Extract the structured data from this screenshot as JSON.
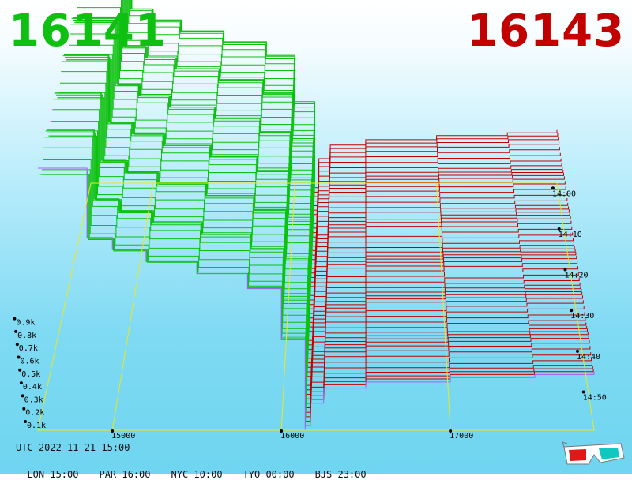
{
  "header": {
    "bid_price": "16141",
    "ask_price": "16143"
  },
  "footer": {
    "utc": "UTC 2022-11-21 15:00",
    "timezones": [
      "LON 15:00",
      "PAR 16:00",
      "NYC 10:00",
      "TYO 00:00",
      "BJS 23:00"
    ]
  },
  "icons": {
    "glasses": "3d-glasses-icon"
  },
  "colors": {
    "bid": "#0ec010",
    "ask": "#c20000",
    "axis": "#e8e820",
    "latest": "#a060ff"
  },
  "chart_data": {
    "type": "area",
    "subtype": "3d-order-book-depth",
    "price_ticks": [
      "15000",
      "16000",
      "17000"
    ],
    "price_tick_values": [
      15000,
      16000,
      17000
    ],
    "depth_ticks": [
      "0.1k",
      "0.2k",
      "0.3k",
      "0.4k",
      "0.5k",
      "0.6k",
      "0.7k",
      "0.8k",
      "0.9k"
    ],
    "depth_tick_values": [
      100,
      200,
      300,
      400,
      500,
      600,
      700,
      800,
      900
    ],
    "time_ticks": [
      "14:00",
      "14:10",
      "14:20",
      "14:30",
      "14:40",
      "14:50"
    ],
    "price_range": [
      14560,
      17850
    ],
    "depth_range": [
      0,
      1000
    ],
    "snapshots": 56,
    "best_bid": 16141,
    "best_ask": 16143,
    "bid_cumulative_depth": [
      {
        "price": 14560,
        "depth": 870
      },
      {
        "price": 14850,
        "depth": 640
      },
      {
        "price": 15000,
        "depth": 600
      },
      {
        "price": 15200,
        "depth": 560
      },
      {
        "price": 15500,
        "depth": 520
      },
      {
        "price": 15800,
        "depth": 470
      },
      {
        "price": 16000,
        "depth": 300
      },
      {
        "price": 16141,
        "depth": 0
      }
    ],
    "ask_cumulative_depth": [
      {
        "price": 16143,
        "depth": 0
      },
      {
        "price": 16170,
        "depth": 90
      },
      {
        "price": 16250,
        "depth": 140
      },
      {
        "price": 16500,
        "depth": 160
      },
      {
        "price": 17000,
        "depth": 175
      },
      {
        "price": 17500,
        "depth": 185
      },
      {
        "price": 17850,
        "depth": 195
      }
    ]
  }
}
